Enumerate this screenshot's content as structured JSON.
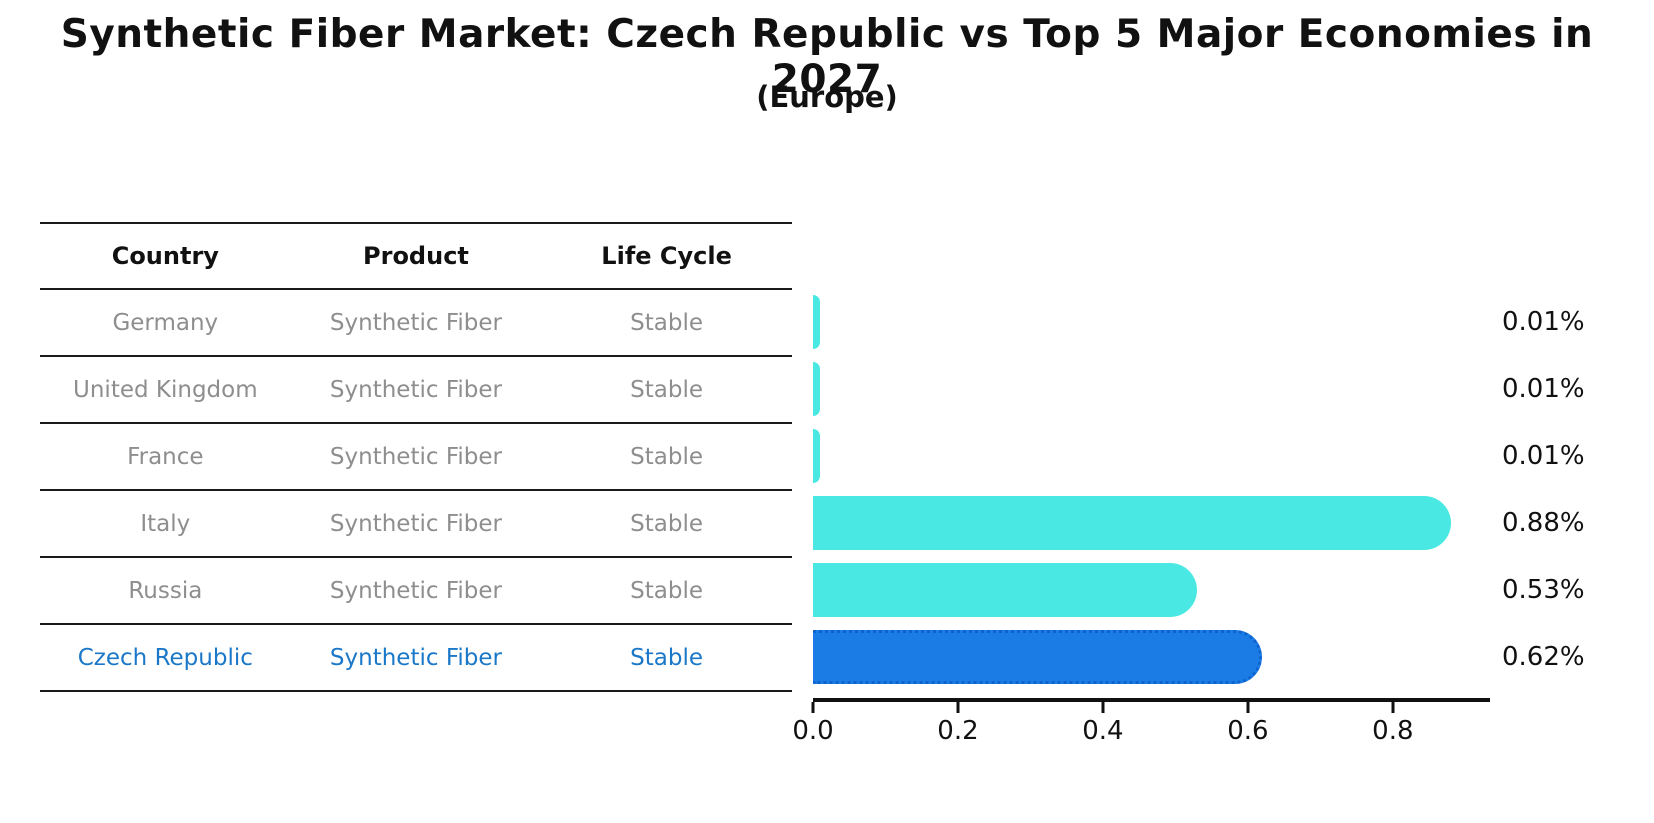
{
  "title": "Synthetic Fiber Market: Czech Republic vs Top 5 Major Economies in 2027",
  "subtitle": "(Europe)",
  "table": {
    "headers": [
      "Country",
      "Product",
      "Life Cycle"
    ],
    "rows": [
      {
        "country": "Germany",
        "product": "Synthetic Fiber",
        "life_cycle": "Stable",
        "highlight": false
      },
      {
        "country": "United Kingdom",
        "product": "Synthetic Fiber",
        "life_cycle": "Stable",
        "highlight": false
      },
      {
        "country": "France",
        "product": "Synthetic Fiber",
        "life_cycle": "Stable",
        "highlight": false
      },
      {
        "country": "Italy",
        "product": "Synthetic Fiber",
        "life_cycle": "Stable",
        "highlight": false
      },
      {
        "country": "Russia",
        "product": "Synthetic Fiber",
        "life_cycle": "Stable",
        "highlight": false
      },
      {
        "country": "Czech Republic",
        "product": "Synthetic Fiber",
        "life_cycle": "Stable",
        "highlight": true
      }
    ]
  },
  "chart_data": {
    "type": "bar",
    "orientation": "horizontal",
    "title": "Synthetic Fiber Market: Czech Republic vs Top 5 Major Economies in 2027",
    "subtitle": "(Europe)",
    "categories": [
      "Germany",
      "United Kingdom",
      "France",
      "Italy",
      "Russia",
      "Czech Republic"
    ],
    "values": [
      0.01,
      0.01,
      0.01,
      0.88,
      0.53,
      0.62
    ],
    "value_labels": [
      "0.01%",
      "0.01%",
      "0.01%",
      "0.88%",
      "0.53%",
      "0.62%"
    ],
    "highlight_index": 5,
    "xlabel": "",
    "ylabel": "",
    "xlim": [
      0,
      0.934
    ],
    "x_ticks": [
      0.0,
      0.2,
      0.4,
      0.6,
      0.8
    ],
    "x_tick_labels": [
      "0.0",
      "0.2",
      "0.4",
      "0.6",
      "0.8"
    ],
    "grid": false,
    "legend": null,
    "colors": {
      "bar": "#4ae8e3",
      "highlight_bar": "#1b7ce5",
      "highlight_bar_edge": "#0e63cf",
      "highlight_text": "#1b78c8",
      "row_text": "#8e8e8e",
      "header_text": "#111111",
      "axis": "#111111"
    }
  }
}
